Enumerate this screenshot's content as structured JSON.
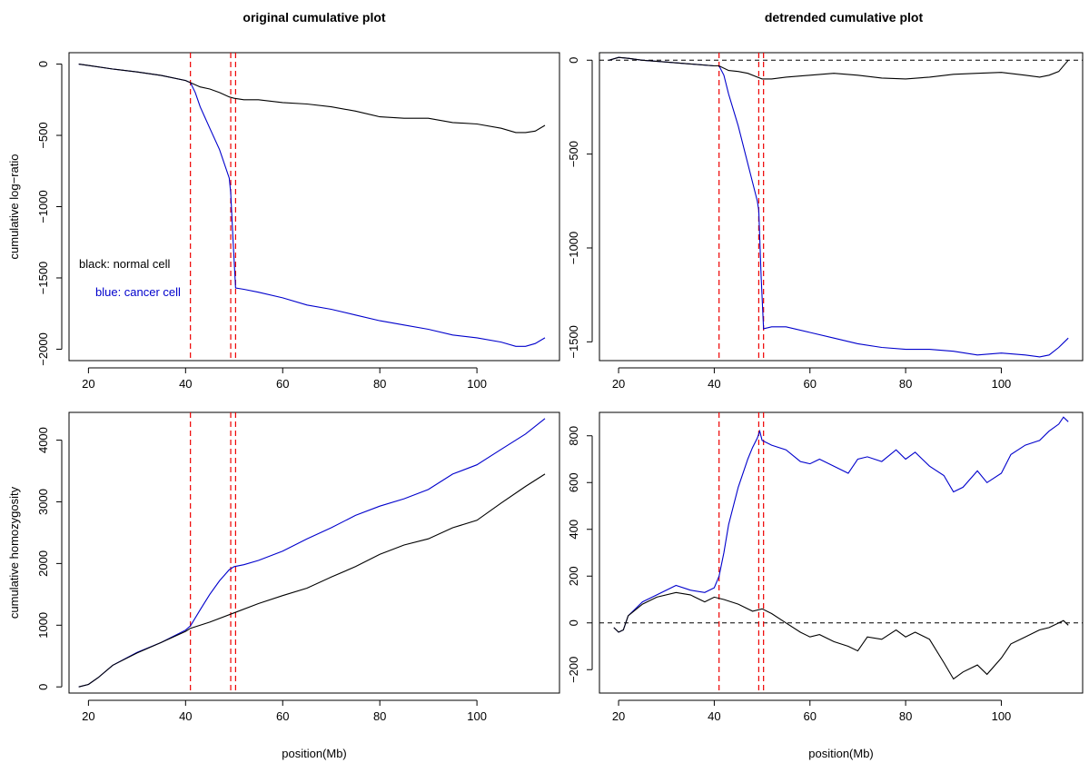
{
  "titles": {
    "left": "original cumulative plot",
    "right": "detrended cumulative plot"
  },
  "colors": {
    "normal": "#000000",
    "cancer": "#0000cc",
    "vline": "#ee0000",
    "frame": "#000000"
  },
  "vlines": [
    41,
    49.3,
    50.3
  ],
  "chart_data": [
    {
      "id": "top-left",
      "type": "line",
      "ylabel": "cumulative log−ratio",
      "xlabel": "",
      "xlim": [
        16,
        117
      ],
      "ylim": [
        -2080,
        80
      ],
      "xticks": [
        20,
        40,
        60,
        80,
        100
      ],
      "yticks": [
        0,
        -500,
        -1000,
        -1500,
        -2000
      ],
      "ytick_labels": [
        "0",
        "−500",
        "−1000",
        "−1500",
        "−2000"
      ],
      "legend": {
        "normal": "black: normal cell",
        "cancer": "blue: cancer cell"
      },
      "series": [
        {
          "key": "normal",
          "x": [
            18,
            20,
            25,
            30,
            35,
            40,
            41,
            43,
            45,
            47,
            49,
            50,
            52,
            55,
            60,
            65,
            70,
            75,
            80,
            85,
            90,
            95,
            100,
            105,
            108,
            110,
            112,
            114
          ],
          "values": [
            0,
            -10,
            -35,
            -55,
            -80,
            -115,
            -130,
            -160,
            -175,
            -200,
            -230,
            -240,
            -250,
            -250,
            -270,
            -280,
            -300,
            -330,
            -370,
            -380,
            -380,
            -410,
            -420,
            -450,
            -480,
            -480,
            -470,
            -430
          ]
        },
        {
          "key": "cancer",
          "x": [
            18,
            20,
            25,
            30,
            35,
            40,
            41,
            42,
            43,
            45,
            47,
            49,
            49.3,
            49.8,
            50.3,
            52,
            55,
            60,
            65,
            70,
            75,
            80,
            85,
            90,
            95,
            100,
            105,
            108,
            110,
            112,
            114
          ],
          "values": [
            0,
            -10,
            -35,
            -55,
            -80,
            -115,
            -130,
            -200,
            -300,
            -450,
            -600,
            -800,
            -900,
            -1250,
            -1570,
            -1580,
            -1600,
            -1640,
            -1690,
            -1720,
            -1760,
            -1800,
            -1830,
            -1860,
            -1900,
            -1920,
            -1950,
            -1980,
            -1980,
            -1960,
            -1920
          ]
        }
      ]
    },
    {
      "id": "top-right",
      "type": "line",
      "ylabel": "",
      "xlabel": "",
      "xlim": [
        16,
        117
      ],
      "ylim": [
        -1600,
        40
      ],
      "xticks": [
        20,
        40,
        60,
        80,
        100
      ],
      "yticks": [
        0,
        -500,
        -1000,
        -1500
      ],
      "ytick_labels": [
        "0",
        "−500",
        "−1000",
        "−1500"
      ],
      "hline": 0,
      "series": [
        {
          "key": "normal",
          "x": [
            18,
            20,
            22,
            25,
            30,
            35,
            40,
            41,
            43,
            45,
            47,
            49,
            50,
            52,
            55,
            60,
            65,
            70,
            75,
            80,
            85,
            90,
            95,
            100,
            105,
            108,
            110,
            112,
            114
          ],
          "values": [
            0,
            15,
            10,
            0,
            -10,
            -20,
            -30,
            -30,
            -55,
            -60,
            -70,
            -90,
            -100,
            -100,
            -90,
            -80,
            -70,
            -80,
            -95,
            -100,
            -90,
            -75,
            -70,
            -65,
            -80,
            -90,
            -80,
            -60,
            0
          ]
        },
        {
          "key": "cancer",
          "x": [
            18,
            20,
            22,
            25,
            30,
            35,
            40,
            41,
            42,
            43,
            45,
            47,
            49,
            49.3,
            49.8,
            50.3,
            52,
            55,
            60,
            65,
            70,
            75,
            80,
            85,
            90,
            95,
            100,
            105,
            108,
            110,
            112,
            114
          ],
          "values": [
            0,
            15,
            10,
            0,
            -10,
            -20,
            -30,
            -30,
            -80,
            -180,
            -350,
            -550,
            -750,
            -800,
            -1150,
            -1430,
            -1420,
            -1420,
            -1450,
            -1480,
            -1510,
            -1530,
            -1540,
            -1540,
            -1550,
            -1570,
            -1560,
            -1570,
            -1580,
            -1570,
            -1530,
            -1480
          ]
        }
      ]
    },
    {
      "id": "bottom-left",
      "type": "line",
      "ylabel": "cumulative homozygosity",
      "xlabel": "position(Mb)",
      "xlim": [
        16,
        117
      ],
      "ylim": [
        -100,
        4450
      ],
      "xticks": [
        20,
        40,
        60,
        80,
        100
      ],
      "yticks": [
        0,
        1000,
        2000,
        3000,
        4000
      ],
      "ytick_labels": [
        "0",
        "1000",
        "2000",
        "3000",
        "4000"
      ],
      "series": [
        {
          "key": "normal",
          "x": [
            18,
            20,
            22,
            25,
            30,
            35,
            40,
            41,
            45,
            50,
            55,
            60,
            65,
            70,
            75,
            80,
            85,
            90,
            95,
            100,
            105,
            110,
            114
          ],
          "values": [
            0,
            40,
            150,
            350,
            550,
            720,
            900,
            950,
            1050,
            1200,
            1350,
            1480,
            1600,
            1780,
            1950,
            2150,
            2300,
            2400,
            2580,
            2700,
            2980,
            3250,
            3450
          ]
        },
        {
          "key": "cancer",
          "x": [
            18,
            20,
            22,
            25,
            30,
            35,
            40,
            41,
            43,
            45,
            47,
            49,
            50,
            52,
            55,
            60,
            65,
            70,
            75,
            80,
            85,
            90,
            95,
            100,
            105,
            110,
            114
          ],
          "values": [
            0,
            40,
            150,
            350,
            560,
            720,
            920,
            990,
            1250,
            1500,
            1720,
            1900,
            1950,
            1980,
            2050,
            2200,
            2400,
            2580,
            2780,
            2930,
            3050,
            3200,
            3450,
            3600,
            3850,
            4100,
            4350
          ]
        }
      ]
    },
    {
      "id": "bottom-right",
      "type": "line",
      "ylabel": "",
      "xlabel": "position(Mb)",
      "xlim": [
        16,
        117
      ],
      "ylim": [
        -300,
        900
      ],
      "xticks": [
        20,
        40,
        60,
        80,
        100
      ],
      "yticks": [
        -200,
        0,
        200,
        400,
        600,
        800
      ],
      "ytick_labels": [
        "−200",
        "0",
        "200",
        "400",
        "600",
        "800"
      ],
      "hline": 0,
      "series": [
        {
          "key": "normal",
          "x": [
            19,
            20,
            21,
            22,
            25,
            28,
            32,
            35,
            38,
            40,
            42,
            45,
            48,
            50,
            52,
            55,
            58,
            60,
            62,
            65,
            68,
            70,
            72,
            75,
            78,
            80,
            82,
            85,
            88,
            90,
            92,
            95,
            97,
            100,
            102,
            105,
            108,
            110,
            112,
            113,
            114
          ],
          "values": [
            -20,
            -40,
            -30,
            30,
            80,
            110,
            130,
            120,
            90,
            110,
            100,
            80,
            50,
            60,
            40,
            0,
            -40,
            -60,
            -50,
            -80,
            -100,
            -120,
            -60,
            -70,
            -30,
            -60,
            -40,
            -70,
            -170,
            -240,
            -210,
            -180,
            -220,
            -150,
            -90,
            -60,
            -30,
            -20,
            0,
            10,
            -10
          ]
        },
        {
          "key": "cancer",
          "x": [
            19,
            20,
            21,
            22,
            25,
            28,
            32,
            35,
            38,
            40,
            41,
            42,
            43,
            45,
            47,
            48,
            49,
            49.5,
            50,
            52,
            55,
            58,
            60,
            62,
            65,
            68,
            70,
            72,
            75,
            78,
            80,
            82,
            85,
            88,
            90,
            92,
            95,
            97,
            100,
            102,
            105,
            108,
            110,
            112,
            113,
            114
          ],
          "values": [
            -20,
            -40,
            -30,
            30,
            90,
            120,
            160,
            140,
            130,
            150,
            200,
            300,
            420,
            580,
            700,
            750,
            790,
            820,
            780,
            760,
            740,
            690,
            680,
            700,
            670,
            640,
            700,
            710,
            690,
            740,
            700,
            730,
            670,
            630,
            560,
            580,
            650,
            600,
            640,
            720,
            760,
            780,
            820,
            850,
            880,
            860
          ]
        }
      ]
    }
  ]
}
